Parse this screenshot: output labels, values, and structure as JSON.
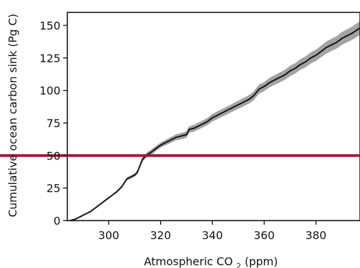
{
  "chart_data": {
    "type": "line",
    "title": "",
    "xlabel_main": "Atmospheric CO",
    "xlabel_sub": "2",
    "xlabel_unit": " (ppm)",
    "ylabel": "Cumulative ocean carbon sink (Pg C)",
    "xlim": [
      284,
      397
    ],
    "ylim": [
      0,
      160
    ],
    "x_ticks": [
      300,
      320,
      340,
      360,
      380
    ],
    "y_ticks": [
      0,
      25,
      50,
      75,
      100,
      125,
      150
    ],
    "reference_line": {
      "y": 50,
      "color": "#a51238"
    },
    "series": [
      {
        "color": "#111111",
        "band_color": "#9e9e9e",
        "x": [
          285,
          287,
          289,
          291,
          293,
          295,
          297,
          299,
          301,
          303,
          305,
          306,
          307,
          308,
          310,
          311,
          312,
          313,
          314,
          315,
          316,
          318,
          320,
          322,
          324,
          326,
          328,
          330,
          331,
          333,
          336,
          338,
          340,
          342,
          345,
          348,
          351,
          354,
          356,
          358,
          360,
          362,
          364,
          366,
          368,
          370,
          372,
          374,
          376,
          378,
          380,
          382,
          384,
          386,
          388,
          390,
          392,
          394,
          397
        ],
        "y": [
          0,
          1,
          3,
          5,
          7,
          10,
          13,
          16,
          19,
          22,
          26,
          29,
          32,
          33,
          35,
          37,
          42,
          47,
          49,
          51,
          52,
          55,
          58,
          60,
          62,
          64,
          65,
          66,
          70,
          71,
          74,
          76,
          79,
          81,
          84,
          87,
          90,
          93,
          96,
          101,
          103,
          106,
          108,
          110,
          112,
          115,
          117,
          120,
          122,
          125,
          127,
          130,
          133,
          135,
          137,
          140,
          142,
          144,
          148
        ],
        "band_half_width": [
          0.3,
          0.4,
          0.4,
          0.5,
          0.5,
          0.6,
          0.6,
          0.7,
          0.7,
          0.8,
          0.9,
          1.0,
          1.1,
          1.2,
          1.3,
          1.4,
          1.5,
          1.6,
          1.7,
          1.8,
          1.9,
          2.0,
          2.0,
          2.1,
          2.2,
          2.3,
          2.4,
          2.5,
          2.5,
          2.6,
          2.7,
          2.8,
          2.9,
          3.0,
          3.0,
          3.1,
          3.2,
          3.3,
          3.4,
          3.5,
          3.5,
          3.6,
          3.7,
          3.8,
          3.9,
          4.0,
          4.0,
          4.1,
          4.2,
          4.3,
          4.4,
          4.5,
          4.6,
          4.7,
          4.8,
          4.9,
          5.0,
          5.1,
          5.3
        ]
      }
    ],
    "grid": false,
    "legend": "none"
  }
}
